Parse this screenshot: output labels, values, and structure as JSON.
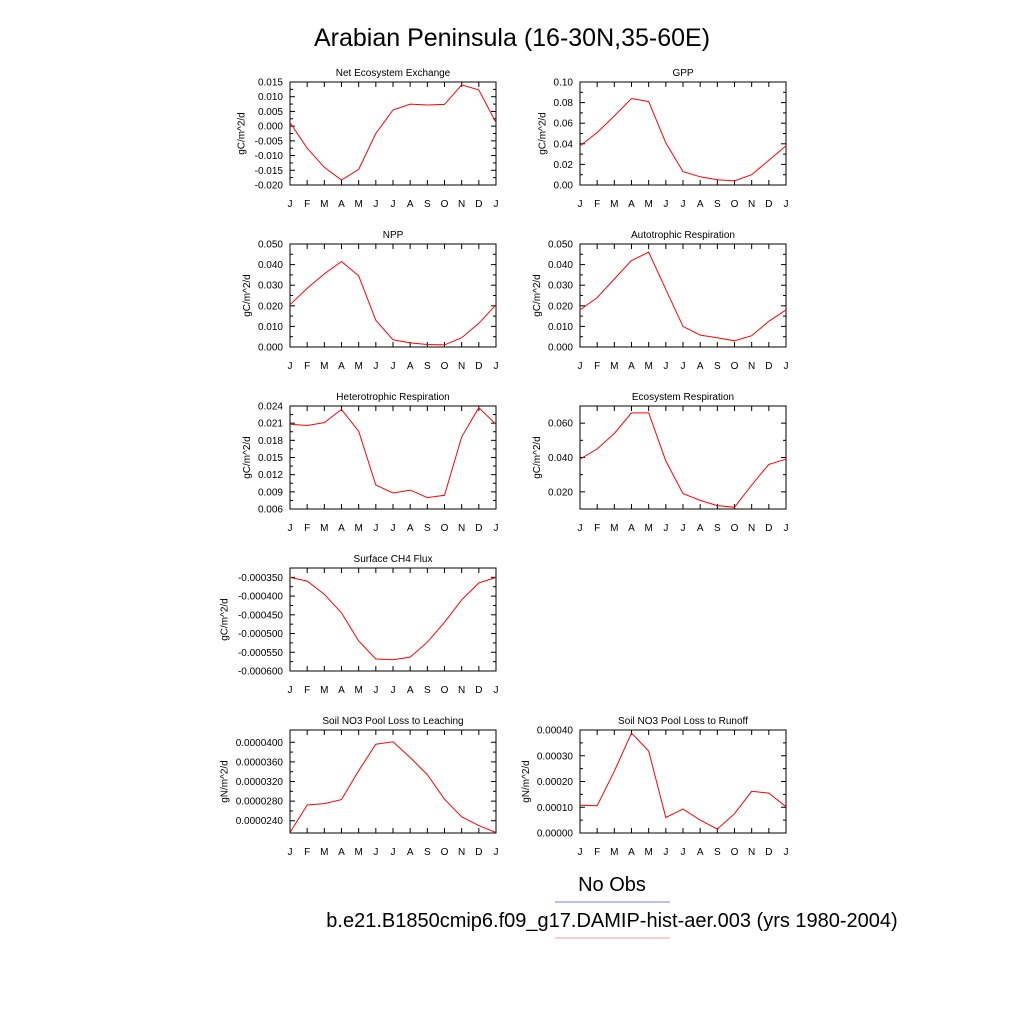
{
  "figure": {
    "title": "Arabian Peninsula (16-30N,35-60E)"
  },
  "legend": {
    "items": [
      {
        "label": "No Obs",
        "color": "#7777ee"
      },
      {
        "label": "b.e21.B1850cmip6.f09_g17.DAMIP-hist-aer.003 (yrs 1980-2004)",
        "color": "#ff9999"
      }
    ]
  },
  "chart_data": [
    {
      "type": "line",
      "title": "Net Ecosystem Exchange",
      "ylabel": "gC/m^2/d",
      "x": [
        "J",
        "F",
        "M",
        "A",
        "M",
        "J",
        "J",
        "A",
        "S",
        "O",
        "N",
        "D",
        "J"
      ],
      "ylim": [
        -0.02,
        0.015
      ],
      "yticks": [
        -0.02,
        -0.015,
        -0.01,
        -0.005,
        0,
        0.005,
        0.01,
        0.015
      ],
      "yticklabels": [
        "-0.020",
        "-0.015",
        "-0.010",
        "-0.005",
        "0.000",
        "0.005",
        "0.010",
        "0.015"
      ],
      "series": [
        {
          "color": "#ff0000",
          "values": [
            0.0012,
            -0.0075,
            -0.014,
            -0.0183,
            -0.0147,
            -0.0025,
            0.0055,
            0.0075,
            0.0072,
            0.0074,
            0.014,
            0.0123,
            0.0012
          ]
        }
      ]
    },
    {
      "type": "line",
      "title": "GPP",
      "ylabel": "gC/m^2/d",
      "x": [
        "J",
        "F",
        "M",
        "A",
        "M",
        "J",
        "J",
        "A",
        "S",
        "O",
        "N",
        "D",
        "J"
      ],
      "ylim": [
        0,
        0.1
      ],
      "yticks": [
        0,
        0.02,
        0.04,
        0.06,
        0.08,
        0.1
      ],
      "yticklabels": [
        "0.00",
        "0.02",
        "0.04",
        "0.06",
        "0.08",
        "0.10"
      ],
      "series": [
        {
          "color": "#ff0000",
          "values": [
            0.038,
            0.051,
            0.067,
            0.084,
            0.081,
            0.041,
            0.013,
            0.008,
            0.005,
            0.004,
            0.01,
            0.024,
            0.038
          ]
        }
      ]
    },
    {
      "type": "line",
      "title": "NPP",
      "ylabel": "gC/m^2/d",
      "x": [
        "J",
        "F",
        "M",
        "A",
        "M",
        "J",
        "J",
        "A",
        "S",
        "O",
        "N",
        "D",
        "J"
      ],
      "ylim": [
        0,
        0.05
      ],
      "yticks": [
        0,
        0.01,
        0.02,
        0.03,
        0.04,
        0.05
      ],
      "yticklabels": [
        "0.000",
        "0.010",
        "0.020",
        "0.030",
        "0.040",
        "0.050"
      ],
      "series": [
        {
          "color": "#ff0000",
          "values": [
            0.0205,
            0.0285,
            0.0355,
            0.0415,
            0.0345,
            0.013,
            0.0035,
            0.002,
            0.0012,
            0.001,
            0.0045,
            0.0115,
            0.0205
          ]
        }
      ]
    },
    {
      "type": "line",
      "title": "Autotrophic Respiration",
      "ylabel": "gC/m^2/d",
      "x": [
        "J",
        "F",
        "M",
        "A",
        "M",
        "J",
        "J",
        "A",
        "S",
        "O",
        "N",
        "D",
        "J"
      ],
      "ylim": [
        0,
        0.05
      ],
      "yticks": [
        0,
        0.01,
        0.02,
        0.03,
        0.04,
        0.05
      ],
      "yticklabels": [
        "0.000",
        "0.010",
        "0.020",
        "0.030",
        "0.040",
        "0.050"
      ],
      "series": [
        {
          "color": "#ff0000",
          "values": [
            0.018,
            0.024,
            0.033,
            0.042,
            0.046,
            0.028,
            0.01,
            0.0058,
            0.0045,
            0.003,
            0.0055,
            0.0125,
            0.018
          ]
        }
      ]
    },
    {
      "type": "line",
      "title": "Heterotrophic Respiration",
      "ylabel": "gC/m^2/d",
      "x": [
        "J",
        "F",
        "M",
        "A",
        "M",
        "J",
        "J",
        "A",
        "S",
        "O",
        "N",
        "D",
        "J"
      ],
      "ylim": [
        0.006,
        0.024
      ],
      "yticks": [
        0.006,
        0.009,
        0.012,
        0.015,
        0.018,
        0.021,
        0.024
      ],
      "yticklabels": [
        "0.006",
        "0.009",
        "0.012",
        "0.015",
        "0.018",
        "0.021",
        "0.024"
      ],
      "series": [
        {
          "color": "#ff0000",
          "values": [
            0.0208,
            0.0206,
            0.0211,
            0.0234,
            0.0196,
            0.0102,
            0.0088,
            0.0093,
            0.008,
            0.0084,
            0.0186,
            0.0237,
            0.0208
          ]
        }
      ]
    },
    {
      "type": "line",
      "title": "Ecosystem Respiration",
      "ylabel": "gC/m^2/d",
      "x": [
        "J",
        "F",
        "M",
        "A",
        "M",
        "J",
        "J",
        "A",
        "S",
        "O",
        "N",
        "D",
        "J"
      ],
      "ylim": [
        0.01,
        0.07
      ],
      "yticks": [
        0.02,
        0.04,
        0.06
      ],
      "yticklabels": [
        "0.020",
        "0.040",
        "0.060"
      ],
      "series": [
        {
          "color": "#ff0000",
          "values": [
            0.039,
            0.045,
            0.054,
            0.066,
            0.066,
            0.038,
            0.019,
            0.015,
            0.012,
            0.011,
            0.024,
            0.036,
            0.039
          ]
        }
      ]
    },
    {
      "type": "line",
      "title": "Surface CH4 Flux",
      "ylabel": "gC/m^2/d",
      "x": [
        "J",
        "F",
        "M",
        "A",
        "M",
        "J",
        "J",
        "A",
        "S",
        "O",
        "N",
        "D",
        "J"
      ],
      "ylim": [
        -0.0006,
        -0.000325
      ],
      "yticks": [
        -0.0006,
        -0.00055,
        -0.0005,
        -0.00045,
        -0.0004,
        -0.00035
      ],
      "yticklabels": [
        "-0.000600",
        "-0.000550",
        "-0.000500",
        "-0.000450",
        "-0.000400",
        "-0.000350"
      ],
      "series": [
        {
          "color": "#ff0000",
          "values": [
            -0.00035,
            -0.00036,
            -0.000395,
            -0.000445,
            -0.00052,
            -0.000568,
            -0.00057,
            -0.000563,
            -0.000523,
            -0.00047,
            -0.00041,
            -0.000365,
            -0.00035
          ]
        }
      ]
    },
    {
      "type": "line",
      "title": "Soil NO3 Pool Loss to Leaching",
      "ylabel": "gN/m^2/d",
      "x": [
        "J",
        "F",
        "M",
        "A",
        "M",
        "J",
        "J",
        "A",
        "S",
        "O",
        "N",
        "D",
        "J"
      ],
      "ylim": [
        2.15e-05,
        4.25e-05
      ],
      "yticks": [
        2.4e-05,
        2.8e-05,
        3.2e-05,
        3.6e-05,
        4e-05
      ],
      "yticklabels": [
        "0.0000240",
        "0.0000280",
        "0.0000320",
        "0.0000360",
        "0.0000400"
      ],
      "series": [
        {
          "color": "#ff0000",
          "values": [
            2.16e-05,
            2.72e-05,
            2.75e-05,
            2.83e-05,
            3.42e-05,
            3.96e-05,
            4.01e-05,
            3.69e-05,
            3.34e-05,
            2.84e-05,
            2.48e-05,
            2.3e-05,
            2.16e-05
          ]
        }
      ]
    },
    {
      "type": "line",
      "title": "Soil NO3 Pool Loss to Runoff",
      "ylabel": "gN/m^2/d",
      "x": [
        "J",
        "F",
        "M",
        "A",
        "M",
        "J",
        "J",
        "A",
        "S",
        "O",
        "N",
        "D",
        "J"
      ],
      "ylim": [
        0,
        0.0004
      ],
      "yticks": [
        0,
        0.0001,
        0.0002,
        0.0003,
        0.0004
      ],
      "yticklabels": [
        "0.00000",
        "0.00010",
        "0.00020",
        "0.00030",
        "0.00040"
      ],
      "series": [
        {
          "color": "#ff0000",
          "values": [
            0.000108,
            0.000106,
            0.00024,
            0.000388,
            0.000318,
            6e-05,
            9.3e-05,
            5e-05,
            1.5e-05,
            7.5e-05,
            0.000162,
            0.000155,
            0.000102
          ]
        }
      ]
    }
  ]
}
